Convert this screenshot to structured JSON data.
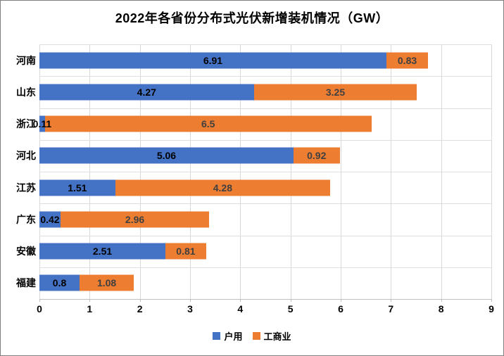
{
  "window": {
    "background": "#ffffff",
    "border_color": "#7f7f7f"
  },
  "chart_data": {
    "type": "bar",
    "orientation": "horizontal",
    "stacked": true,
    "title": "2022年各省份分布式光伏新增装机情况（GW）",
    "categories": [
      "河南",
      "山东",
      "浙江",
      "河北",
      "江苏",
      "广东",
      "安徽",
      "福建"
    ],
    "series": [
      {
        "name": "户用",
        "color": "#4472C4",
        "label_color": "#000000",
        "values": [
          6.91,
          4.27,
          0.11,
          5.06,
          1.51,
          0.42,
          2.51,
          0.8
        ]
      },
      {
        "name": "工商业",
        "color": "#ED7D31",
        "label_color": "#404040",
        "values": [
          0.83,
          3.25,
          6.5,
          0.92,
          4.28,
          2.96,
          0.81,
          1.08
        ]
      }
    ],
    "xlim": [
      0,
      9
    ],
    "x_ticks": [
      "0",
      "1",
      "2",
      "3",
      "4",
      "5",
      "6",
      "7",
      "8",
      "9"
    ],
    "grid": {
      "vertical": true,
      "horizontal_row_boundaries": true,
      "color": "#d9d9d9"
    },
    "axis_color": "#bfbfbf",
    "legend": {
      "position": "bottom"
    }
  }
}
